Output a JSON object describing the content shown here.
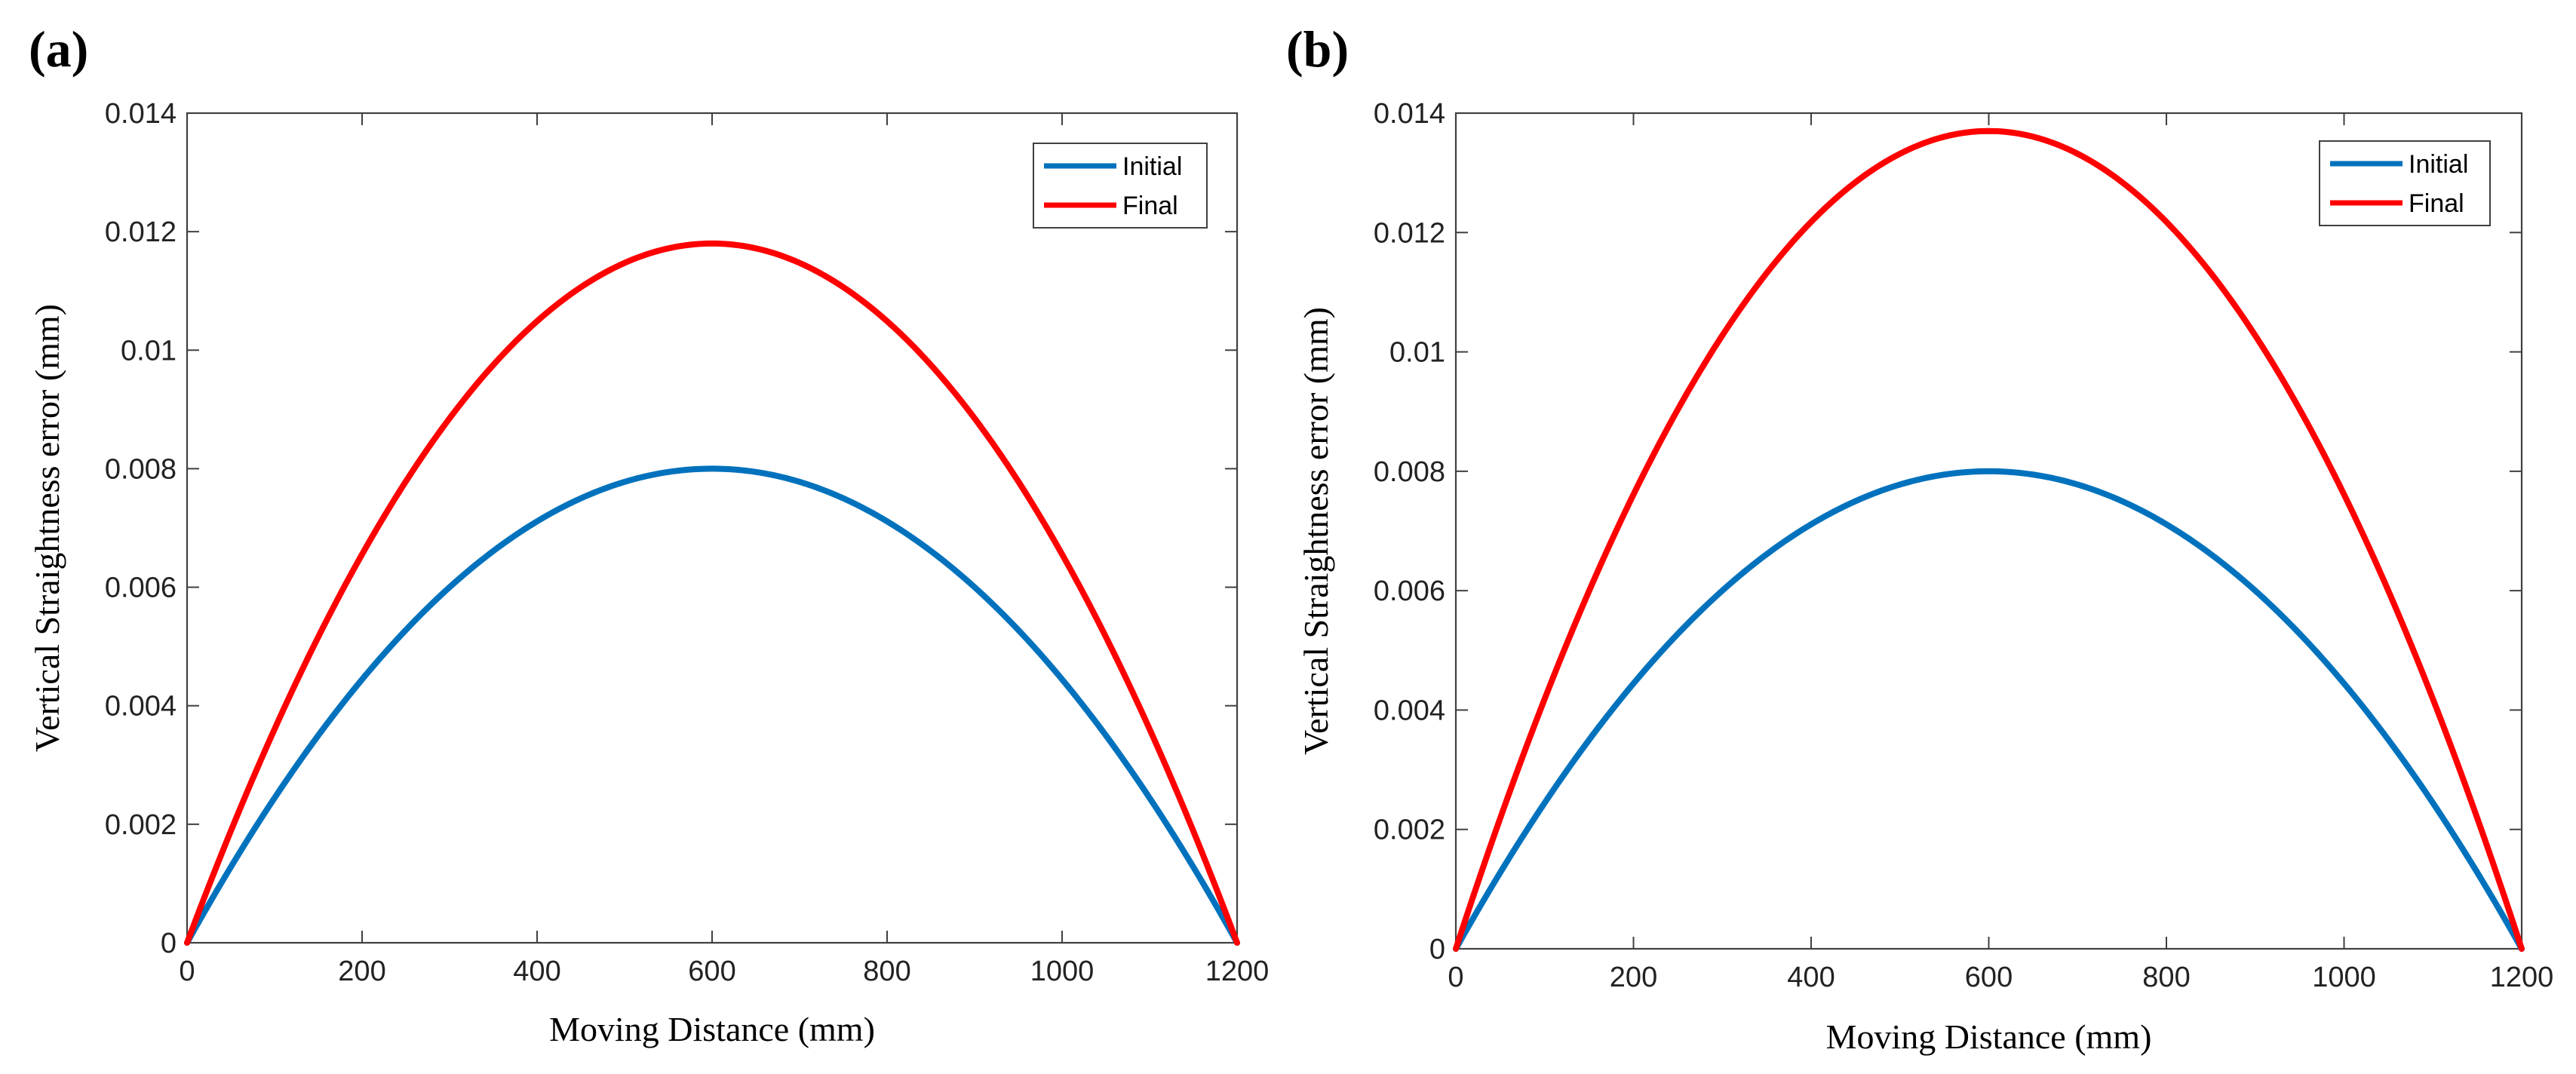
{
  "colors": {
    "initial": "#0072BD",
    "final": "#FF0000",
    "axis": "#404040",
    "background": "#FFFFFF"
  },
  "chart_data": [
    {
      "panel_label": "(a)",
      "type": "line",
      "xlabel": "Moving Distance (mm)",
      "ylabel": "Vertical Straightness error (mm)",
      "xlim": [
        0,
        1200
      ],
      "ylim": [
        0,
        0.014
      ],
      "xticks": [
        0,
        200,
        400,
        600,
        800,
        1000,
        1200
      ],
      "yticks": [
        0,
        0.002,
        0.004,
        0.006,
        0.008,
        0.01,
        0.012,
        0.014
      ],
      "xtick_labels": [
        "0",
        "200",
        "400",
        "600",
        "800",
        "1000",
        "1200"
      ],
      "ytick_labels": [
        "0",
        "0.002",
        "0.004",
        "0.006",
        "0.008",
        "0.01",
        "0.012",
        "0.014"
      ],
      "legend_position": "top-right",
      "series": [
        {
          "name": "Initial",
          "color_key": "initial",
          "x": [
            0,
            100,
            200,
            300,
            400,
            500,
            600,
            700,
            800,
            900,
            1000,
            1100,
            1200
          ],
          "y": [
            0,
            0.00222,
            0.00417,
            0.00583,
            0.00711,
            0.00778,
            0.008,
            0.00778,
            0.00711,
            0.00583,
            0.00417,
            0.00222,
            0
          ]
        },
        {
          "name": "Final",
          "color_key": "final",
          "x": [
            0,
            100,
            200,
            300,
            400,
            500,
            600,
            700,
            800,
            900,
            1000,
            1100,
            1200
          ],
          "y": [
            0,
            0.00328,
            0.00615,
            0.0086,
            0.01049,
            0.01148,
            0.0118,
            0.01148,
            0.01049,
            0.0086,
            0.00615,
            0.00328,
            0
          ]
        }
      ]
    },
    {
      "panel_label": "(b)",
      "type": "line",
      "xlabel": "Moving Distance (mm)",
      "ylabel": "Vertical Straightness error (mm)",
      "xlim": [
        0,
        1200
      ],
      "ylim": [
        0,
        0.014
      ],
      "xticks": [
        0,
        200,
        400,
        600,
        800,
        1000,
        1200
      ],
      "yticks": [
        0,
        0.002,
        0.004,
        0.006,
        0.008,
        0.01,
        0.012,
        0.014
      ],
      "xtick_labels": [
        "0",
        "200",
        "400",
        "600",
        "800",
        "1000",
        "1200"
      ],
      "ytick_labels": [
        "0",
        "0.002",
        "0.004",
        "0.006",
        "0.008",
        "0.01",
        "0.012",
        "0.014"
      ],
      "legend_position": "top-right",
      "series": [
        {
          "name": "Initial",
          "color_key": "initial",
          "x": [
            0,
            100,
            200,
            300,
            400,
            500,
            600,
            700,
            800,
            900,
            1000,
            1100,
            1200
          ],
          "y": [
            0,
            0.00222,
            0.00417,
            0.00583,
            0.00711,
            0.00778,
            0.008,
            0.00778,
            0.00711,
            0.00583,
            0.00417,
            0.00222,
            0
          ]
        },
        {
          "name": "Final",
          "color_key": "final",
          "x": [
            0,
            100,
            200,
            300,
            400,
            500,
            600,
            700,
            800,
            900,
            1000,
            1100,
            1200
          ],
          "y": [
            0,
            0.00381,
            0.00714,
            0.00999,
            0.01218,
            0.01332,
            0.0137,
            0.01332,
            0.01218,
            0.00999,
            0.00714,
            0.00381,
            0
          ]
        }
      ]
    }
  ]
}
